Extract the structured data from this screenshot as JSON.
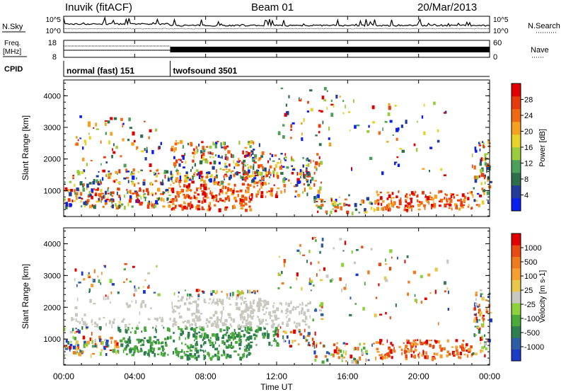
{
  "header": {
    "station": "Inuvik (fitACF)",
    "beam": "Beam 01",
    "date": "20/Mar/2013"
  },
  "noise_panel": {
    "left_label": "N.Sky",
    "right_label": "N.Search",
    "left_ticks": [
      "10^5",
      "10^0"
    ],
    "right_ticks": [
      "10^5",
      "10^0"
    ]
  },
  "freq_panel": {
    "left_label_1": "Freq.",
    "left_label_2": "[MHz]",
    "left_ticks": [
      "18",
      "8"
    ],
    "right_label": "Nave",
    "right_ticks": [
      "60",
      "0"
    ]
  },
  "cpid_panel": {
    "label": "CPID",
    "modes": [
      {
        "name": "normal (fast) 151",
        "start_hour": 0,
        "end_hour": 6
      },
      {
        "name": "twofsound 3501",
        "start_hour": 6,
        "end_hour": 24
      }
    ]
  },
  "power_panel": {
    "ylabel": "Slant Range [km]",
    "yticks": [
      "4000",
      "3000",
      "2000",
      "1000"
    ],
    "colorbar_title": "Power [dB]",
    "colorbar_ticks": [
      "28",
      "24",
      "20",
      "16",
      "12",
      "8",
      "4"
    ],
    "colors": [
      "#0a1ef0",
      "#233c9a",
      "#2e6e4a",
      "#4da05a",
      "#9acb3c",
      "#e8d12a",
      "#f5a01e",
      "#f06a14",
      "#e83a0a",
      "#e00000"
    ]
  },
  "velocity_panel": {
    "ylabel": "Slant Range [km]",
    "yticks": [
      "4000",
      "3000",
      "2000",
      "1000"
    ],
    "colorbar_title": "Velocity [m s-1]",
    "colorbar_ticks": [
      "1000",
      "500",
      "100",
      "25",
      "-25",
      "-100",
      "-500",
      "-1000"
    ],
    "colors": [
      "#1c3cc8",
      "#2e5ea8",
      "#2e7e50",
      "#4aaa3a",
      "#8cd23c",
      "#c8c8c0",
      "#e8c84a",
      "#f5a030",
      "#f07a1e",
      "#e84a12",
      "#e00000"
    ]
  },
  "x_axis": {
    "ticks": [
      "00:00",
      "04:00",
      "08:00",
      "12:00",
      "16:00",
      "20:00",
      "00:00"
    ],
    "label": "Time UT"
  },
  "chart_data": {
    "type": "heatmap",
    "title": "Inuvik (fitACF)",
    "x_range_hours": [
      0,
      24
    ],
    "y_range_km": [
      180,
      4500
    ],
    "ylabel": "Slant Range [km]",
    "xlabel": "Time UT",
    "power_range_db": [
      0,
      30
    ],
    "velocity_range_ms": [
      -1000,
      1000
    ],
    "mode_change_hour": 6
  }
}
